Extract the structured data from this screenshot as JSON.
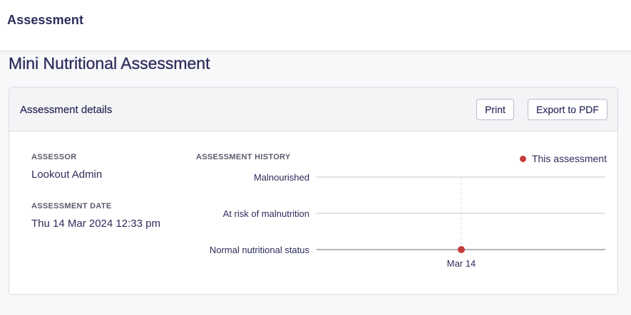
{
  "topbar": {
    "title": "Assessment"
  },
  "page": {
    "title": "Mini Nutritional Assessment"
  },
  "card": {
    "title": "Assessment details",
    "print_label": "Print",
    "export_label": "Export to PDF"
  },
  "details": {
    "assessor_label": "ASSESSOR",
    "assessor_value": "Lookout Admin",
    "date_label": "ASSESSMENT DATE",
    "date_value": "Thu 14 Mar 2024 12:33 pm"
  },
  "history": {
    "label": "ASSESSMENT HISTORY",
    "legend_label": "This assessment",
    "colors": {
      "point": "#c63b3b",
      "grid": "#d9d9de",
      "baseline": "#9a9aa6"
    }
  },
  "chart_data": {
    "type": "scatter",
    "categories": [
      "Malnourished",
      "At risk of malnutrition",
      "Normal nutritional status"
    ],
    "x": [
      "Mar 14"
    ],
    "series": [
      {
        "name": "This assessment",
        "values": [
          "Normal nutritional status"
        ]
      }
    ],
    "grid": true,
    "legend": "top-right"
  }
}
